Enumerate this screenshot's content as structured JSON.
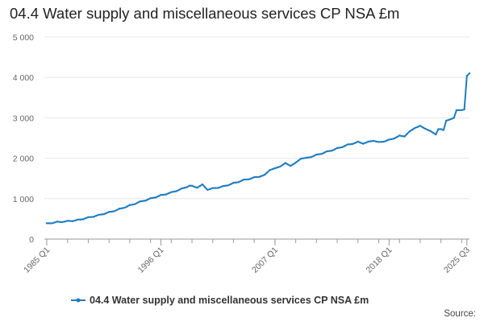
{
  "chart_data": {
    "type": "line",
    "title": "04.4 Water supply and miscellaneous services CP NSA £m",
    "xlabel": "",
    "ylabel": "",
    "ylim": [
      0,
      5000
    ],
    "y_ticks": [
      0,
      1000,
      2000,
      3000,
      4000,
      5000
    ],
    "y_tick_labels": [
      "0",
      "1 000",
      "2 000",
      "3 000",
      "4 000",
      "5 000"
    ],
    "x_tick_labels": [
      "1985 Q1",
      "1996 Q1",
      "2007 Q1",
      "2018 Q1",
      "2025 Q3"
    ],
    "x_tick_index": [
      0,
      44,
      88,
      132,
      162
    ],
    "series": [
      {
        "name": "04.4 Water supply and miscellaneous services CP NSA £m",
        "color": "#1e7cc0",
        "anchors": [
          [
            0,
            380
          ],
          [
            4,
            420
          ],
          [
            8,
            440
          ],
          [
            12,
            470
          ],
          [
            16,
            530
          ],
          [
            20,
            590
          ],
          [
            24,
            660
          ],
          [
            28,
            740
          ],
          [
            32,
            830
          ],
          [
            36,
            920
          ],
          [
            40,
            1000
          ],
          [
            44,
            1080
          ],
          [
            48,
            1150
          ],
          [
            52,
            1240
          ],
          [
            55,
            1320
          ],
          [
            58,
            1280
          ],
          [
            60,
            1340
          ],
          [
            62,
            1230
          ],
          [
            64,
            1250
          ],
          [
            68,
            1300
          ],
          [
            72,
            1380
          ],
          [
            76,
            1460
          ],
          [
            80,
            1520
          ],
          [
            84,
            1580
          ],
          [
            86,
            1720
          ],
          [
            88,
            1740
          ],
          [
            92,
            1870
          ],
          [
            94,
            1820
          ],
          [
            96,
            1880
          ],
          [
            98,
            2000
          ],
          [
            100,
            2000
          ],
          [
            104,
            2080
          ],
          [
            108,
            2160
          ],
          [
            112,
            2240
          ],
          [
            116,
            2330
          ],
          [
            120,
            2400
          ],
          [
            122,
            2370
          ],
          [
            124,
            2400
          ],
          [
            126,
            2440
          ],
          [
            128,
            2390
          ],
          [
            132,
            2450
          ],
          [
            136,
            2550
          ],
          [
            138,
            2550
          ],
          [
            140,
            2660
          ],
          [
            142,
            2760
          ],
          [
            144,
            2790
          ],
          [
            146,
            2740
          ],
          [
            148,
            2660
          ],
          [
            150,
            2600
          ],
          [
            151,
            2720
          ],
          [
            153,
            2700
          ],
          [
            154,
            2940
          ],
          [
            156,
            2960
          ],
          [
            157,
            3000
          ],
          [
            158,
            3200
          ],
          [
            160,
            3180
          ],
          [
            161,
            3210
          ],
          [
            162,
            4050
          ],
          [
            163,
            4100
          ]
        ]
      }
    ],
    "legend_position": "bottom-center"
  },
  "source_label": "Source:"
}
